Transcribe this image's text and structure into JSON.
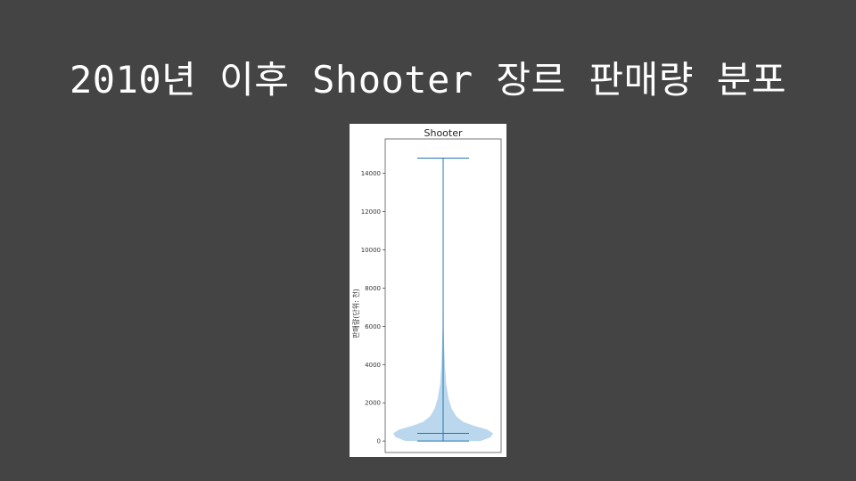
{
  "slide": {
    "title": "2010년 이후 Shooter 장르 판매량 분포"
  },
  "chart_data": {
    "type": "violin",
    "title": "Shooter",
    "ylabel": "판매량(단위: 천)",
    "xlabel": "",
    "ylim": [
      -600,
      15800
    ],
    "yticks": [
      0,
      2000,
      4000,
      6000,
      8000,
      10000,
      12000,
      14000
    ],
    "ytick_labels": [
      "0",
      "2000",
      "4000",
      "6000",
      "8000",
      "10000",
      "12000",
      "14000"
    ],
    "grid": false,
    "series": [
      {
        "min": 0,
        "max": 14800,
        "median": 400,
        "density_profile": [
          {
            "y": 0,
            "width": 0.75
          },
          {
            "y": 200,
            "width": 0.95
          },
          {
            "y": 400,
            "width": 1.0
          },
          {
            "y": 600,
            "width": 0.88
          },
          {
            "y": 800,
            "width": 0.62
          },
          {
            "y": 1000,
            "width": 0.4
          },
          {
            "y": 1300,
            "width": 0.26
          },
          {
            "y": 1700,
            "width": 0.17
          },
          {
            "y": 2200,
            "width": 0.11
          },
          {
            "y": 3000,
            "width": 0.06
          },
          {
            "y": 4000,
            "width": 0.035
          },
          {
            "y": 5000,
            "width": 0.02
          },
          {
            "y": 6000,
            "width": 0.01
          },
          {
            "y": 8000,
            "width": 0.006
          },
          {
            "y": 10000,
            "width": 0.004
          },
          {
            "y": 12000,
            "width": 0.003
          },
          {
            "y": 14800,
            "width": 0.002
          }
        ]
      }
    ],
    "colors": {
      "violin_fill": "#aed0ea",
      "violin_line": "#1f77b4",
      "axes_frame": "#555555"
    }
  }
}
